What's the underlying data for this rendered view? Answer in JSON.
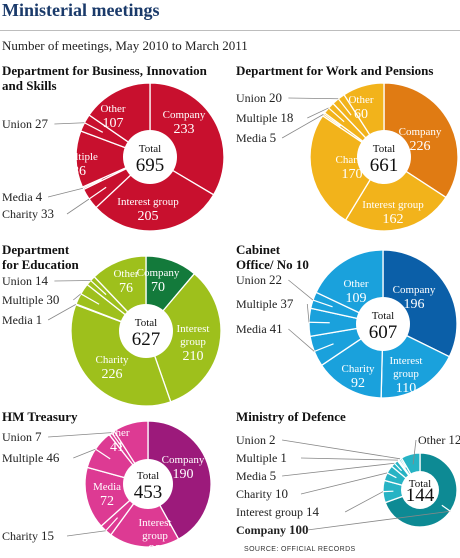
{
  "header": {
    "title": "Ministerial meetings",
    "subtitle": "Number of meetings, May 2010 to March 2011",
    "source": "SOURCE: OFFICIAL RECORDS"
  },
  "chart_data": [
    {
      "type": "pie",
      "title": "Department for Business, Innovation and Skills",
      "total_label": "Total",
      "total": 695,
      "slices": [
        {
          "name": "Company",
          "value": 233,
          "color": "#c8102e"
        },
        {
          "name": "Interest group",
          "value": 205,
          "color": "#c8102e"
        },
        {
          "name": "Charity",
          "value": 33,
          "color": "#c8102e"
        },
        {
          "name": "Media",
          "value": 4,
          "color": "#c8102e"
        },
        {
          "name": "Multiple",
          "value": 86,
          "color": "#c8102e"
        },
        {
          "name": "Union",
          "value": 27,
          "color": "#c8102e"
        },
        {
          "name": "Other",
          "value": 107,
          "color": "#c8102e"
        }
      ]
    },
    {
      "type": "pie",
      "title": "Department for Work and Pensions",
      "total_label": "Total",
      "total": 661,
      "slices": [
        {
          "name": "Company",
          "value": 226,
          "color": "#e07b13"
        },
        {
          "name": "Interest group",
          "value": 162,
          "color": "#f2b31b"
        },
        {
          "name": "Charity",
          "value": 170,
          "color": "#f2b31b"
        },
        {
          "name": "Media",
          "value": 5,
          "color": "#f2b31b"
        },
        {
          "name": "Multiple",
          "value": 18,
          "color": "#f2b31b"
        },
        {
          "name": "Union",
          "value": 20,
          "color": "#f2b31b"
        },
        {
          "name": "Other",
          "value": 60,
          "color": "#f2b31b"
        }
      ]
    },
    {
      "type": "pie",
      "title": "Department for Education",
      "total_label": "Total",
      "total": 627,
      "slices": [
        {
          "name": "Company",
          "value": 70,
          "color": "#137a3b"
        },
        {
          "name": "Interest group",
          "value": 210,
          "color": "#9ec01c"
        },
        {
          "name": "Charity",
          "value": 226,
          "color": "#9ec01c"
        },
        {
          "name": "Media",
          "value": 1,
          "color": "#9ec01c"
        },
        {
          "name": "Multiple",
          "value": 30,
          "color": "#9ec01c"
        },
        {
          "name": "Union",
          "value": 14,
          "color": "#9ec01c"
        },
        {
          "name": "Other",
          "value": 76,
          "color": "#9ec01c"
        }
      ]
    },
    {
      "type": "pie",
      "title": "Cabinet Office/ No 10",
      "total_label": "Total",
      "total": 607,
      "slices": [
        {
          "name": "Company",
          "value": 196,
          "color": "#0b5fa8"
        },
        {
          "name": "Interest group",
          "value": 110,
          "color": "#1aa1dc"
        },
        {
          "name": "Charity",
          "value": 92,
          "color": "#1aa1dc"
        },
        {
          "name": "Media",
          "value": 41,
          "color": "#1aa1dc"
        },
        {
          "name": "Multiple",
          "value": 37,
          "color": "#1aa1dc"
        },
        {
          "name": "Union",
          "value": 22,
          "color": "#1aa1dc"
        },
        {
          "name": "Other",
          "value": 109,
          "color": "#1aa1dc"
        }
      ]
    },
    {
      "type": "pie",
      "title": "HM Treasury",
      "total_label": "Total",
      "total": 453,
      "slices": [
        {
          "name": "Company",
          "value": 190,
          "color": "#9c1a7b"
        },
        {
          "name": "Interest group",
          "value": 82,
          "color": "#dd3a93"
        },
        {
          "name": "Charity",
          "value": 15,
          "color": "#dd3a93"
        },
        {
          "name": "Media",
          "value": 72,
          "color": "#dd3a93"
        },
        {
          "name": "Multiple",
          "value": 46,
          "color": "#dd3a93"
        },
        {
          "name": "Union",
          "value": 7,
          "color": "#dd3a93"
        },
        {
          "name": "Other",
          "value": 41,
          "color": "#dd3a93"
        }
      ]
    },
    {
      "type": "pie",
      "title": "Ministry of Defence",
      "total_label": "Total",
      "total": 144,
      "slices": [
        {
          "name": "Company",
          "value": 100,
          "color": "#0d8a94"
        },
        {
          "name": "Interest group",
          "value": 14,
          "color": "#27b3c4"
        },
        {
          "name": "Charity",
          "value": 10,
          "color": "#27b3c4"
        },
        {
          "name": "Media",
          "value": 5,
          "color": "#27b3c4"
        },
        {
          "name": "Multiple",
          "value": 1,
          "color": "#27b3c4"
        },
        {
          "name": "Union",
          "value": 2,
          "color": "#27b3c4"
        },
        {
          "name": "Other",
          "value": 12,
          "color": "#27b3c4"
        }
      ]
    }
  ]
}
